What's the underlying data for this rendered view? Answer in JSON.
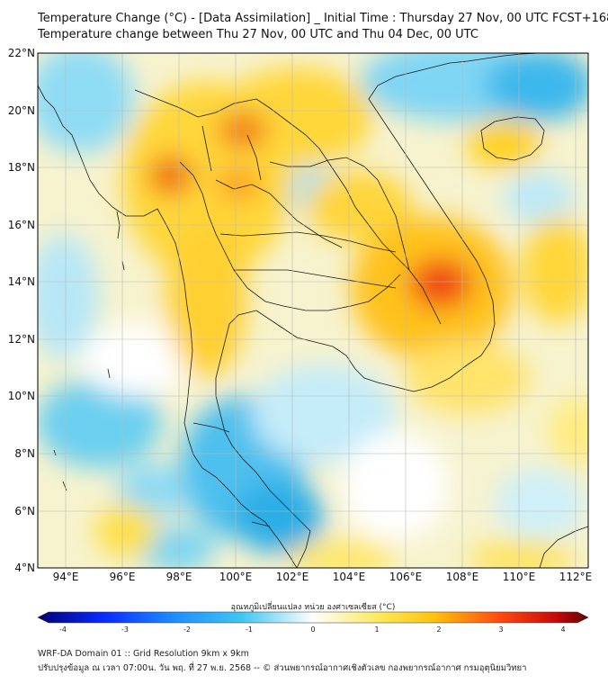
{
  "title_line1": "Temperature Change (°C) - [Data Assimilation] _ Initial Time : Thursday 27 Nov, 00 UTC FCST+168",
  "title_line2": "Temperature change between Thu 27 Nov, 00 UTC and Thu 04 Dec, 00 UTC",
  "lat_labels": [
    "22°N",
    "20°N",
    "18°N",
    "16°N",
    "14°N",
    "12°N",
    "10°N",
    "8°N",
    "6°N",
    "4°N"
  ],
  "lon_labels": [
    "94°E",
    "96°E",
    "98°E",
    "100°E",
    "102°E",
    "104°E",
    "106°E",
    "108°E",
    "110°E",
    "112°E"
  ],
  "colorbar_title": "อุณหภูมิเปลี่ยนแปลง หน่วย องศาเซลเซียส (°C)",
  "colorbar_ticks": [
    "-4",
    "-3",
    "-2",
    "-1",
    "0",
    "1",
    "2",
    "3",
    "4"
  ],
  "footer_line1": "WRF-DA Domain 01 :: Grid Resolution 9km x 9km",
  "footer_line2": "ปรับปรุงข้อมูล ณ เวลา 07:00น. วัน พฤ. ที่ 27 พ.ย. 2568 -- © ส่วนพยากรณ์อากาศเชิงตัวเลข กองพยากรณ์อากาศ กรมอุตุนิยมวิทยา",
  "colors": {
    "cold": "#2ab0e8",
    "neutral": "#ffffff",
    "warm": "#ffd21a",
    "hot": "#e8141a"
  }
}
